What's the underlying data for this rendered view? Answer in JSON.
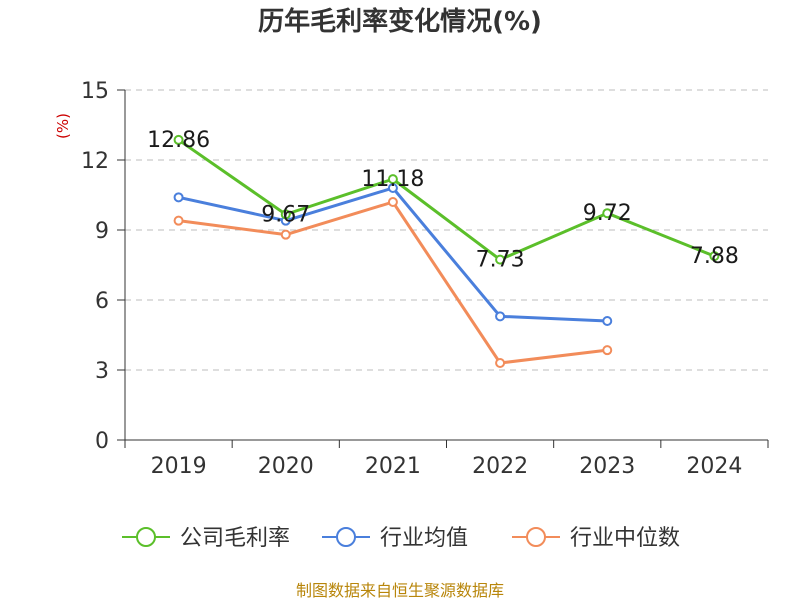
{
  "chart_data": {
    "type": "line",
    "title": "历年毛利率变化情况(%)",
    "ylabel": "(%)",
    "xlabel": "",
    "categories": [
      "2019",
      "2020",
      "2021",
      "2022",
      "2023",
      "2024"
    ],
    "ylim": [
      0,
      15
    ],
    "yticks": [
      0,
      3,
      6,
      9,
      12,
      15
    ],
    "grid": true,
    "legend_position": "bottom",
    "series": [
      {
        "name": "公司毛利率",
        "color": "#5bbf2a",
        "values": [
          12.86,
          9.67,
          11.18,
          7.73,
          9.72,
          7.88
        ],
        "labels": [
          "12.86",
          "9.67",
          "11.18",
          "7.73",
          "9.72",
          "7.88"
        ]
      },
      {
        "name": "行业均值",
        "color": "#4a7fdc",
        "values": [
          10.4,
          9.4,
          10.8,
          5.3,
          5.1,
          null
        ]
      },
      {
        "name": "行业中位数",
        "color": "#f28c5a",
        "values": [
          9.4,
          8.8,
          10.2,
          3.3,
          3.85,
          null
        ]
      }
    ]
  },
  "source": "制图数据来自恒生聚源数据库"
}
